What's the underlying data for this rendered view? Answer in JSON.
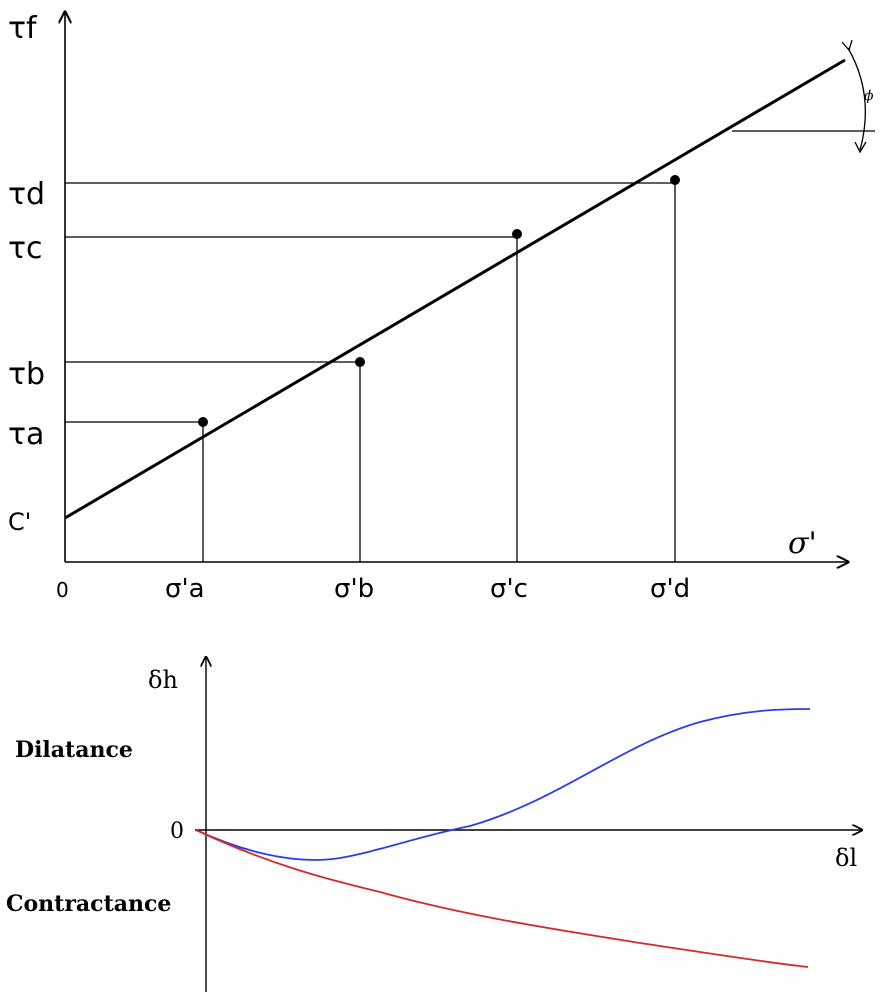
{
  "top_diagram": {
    "y_axis_label": "τf",
    "x_axis_label": "σ'",
    "origin_label": "0",
    "intercept_label": "C'",
    "angle_label": "ϕ",
    "points": [
      {
        "tau_label": "τa",
        "sigma_label": "σ'a"
      },
      {
        "tau_label": "τb",
        "sigma_label": "σ'b"
      },
      {
        "tau_label": "τc",
        "sigma_label": "σ'c"
      },
      {
        "tau_label": "τd",
        "sigma_label": "σ'd"
      }
    ]
  },
  "bottom_diagram": {
    "y_axis_label": "δh",
    "x_axis_label": "δl",
    "origin_label": "0",
    "upper_region_label": "Dilatance",
    "lower_region_label": "Contractance",
    "curves": [
      {
        "color": "#2a3fe8"
      },
      {
        "color": "#d42a2a"
      }
    ]
  },
  "colors": {
    "ink": "#000000",
    "dilatant_curve": "#2a3fe8",
    "contractant_curve": "#d42a2a"
  }
}
